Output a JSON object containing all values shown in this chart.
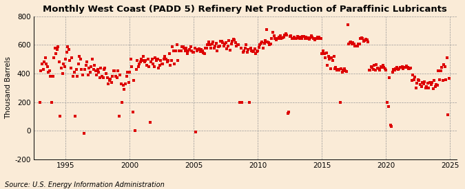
{
  "title": "Monthly West Coast (PADD 5) Refinery Net Production of Paraffinic Lubricants",
  "ylabel": "Thousand Barrels",
  "source": "Source: U.S. Energy Information Administration",
  "background_color": "#faebd7",
  "marker_color": "#dd0000",
  "grid_color": "#999999",
  "title_fontsize": 9.5,
  "ylabel_fontsize": 7.5,
  "source_fontsize": 7,
  "ylim": [
    -200,
    800
  ],
  "xlim_start": 1992.5,
  "xlim_end": 2025.5,
  "yticks": [
    -200,
    0,
    200,
    400,
    600,
    800
  ],
  "xticks": [
    1995,
    2000,
    2005,
    2010,
    2015,
    2020,
    2025
  ],
  "x_values": [
    1993.0,
    1993.08,
    1993.17,
    1993.25,
    1993.33,
    1993.42,
    1993.5,
    1993.58,
    1993.67,
    1993.75,
    1993.83,
    1993.92,
    1994.0,
    1994.08,
    1994.17,
    1994.25,
    1994.33,
    1994.42,
    1994.5,
    1994.58,
    1994.67,
    1994.75,
    1994.83,
    1994.92,
    1995.0,
    1995.08,
    1995.17,
    1995.25,
    1995.33,
    1995.42,
    1995.5,
    1995.58,
    1995.67,
    1995.75,
    1995.83,
    1995.92,
    1996.0,
    1996.08,
    1996.17,
    1996.25,
    1996.33,
    1996.42,
    1996.5,
    1996.58,
    1996.67,
    1996.75,
    1996.83,
    1996.92,
    1997.0,
    1997.08,
    1997.17,
    1997.25,
    1997.33,
    1997.42,
    1997.5,
    1997.58,
    1997.67,
    1997.75,
    1997.83,
    1997.92,
    1998.0,
    1998.08,
    1998.17,
    1998.25,
    1998.33,
    1998.42,
    1998.5,
    1998.58,
    1998.67,
    1998.75,
    1998.83,
    1998.92,
    1999.0,
    1999.08,
    1999.17,
    1999.25,
    1999.33,
    1999.42,
    1999.5,
    1999.58,
    1999.67,
    1999.75,
    1999.83,
    1999.92,
    2000.0,
    2000.08,
    2000.17,
    2000.25,
    2000.33,
    2000.42,
    2000.5,
    2000.58,
    2000.67,
    2000.75,
    2000.83,
    2000.92,
    2001.0,
    2001.08,
    2001.17,
    2001.25,
    2001.33,
    2001.42,
    2001.5,
    2001.58,
    2001.67,
    2001.75,
    2001.83,
    2001.92,
    2002.0,
    2002.08,
    2002.17,
    2002.25,
    2002.33,
    2002.42,
    2002.5,
    2002.58,
    2002.67,
    2002.75,
    2002.83,
    2002.92,
    2003.0,
    2003.08,
    2003.17,
    2003.25,
    2003.33,
    2003.42,
    2003.5,
    2003.58,
    2003.67,
    2003.75,
    2003.83,
    2003.92,
    2004.0,
    2004.08,
    2004.17,
    2004.25,
    2004.33,
    2004.42,
    2004.5,
    2004.58,
    2004.67,
    2004.75,
    2004.83,
    2004.92,
    2005.0,
    2005.08,
    2005.17,
    2005.25,
    2005.33,
    2005.42,
    2005.5,
    2005.58,
    2005.67,
    2005.75,
    2005.83,
    2005.92,
    2006.0,
    2006.08,
    2006.17,
    2006.25,
    2006.33,
    2006.42,
    2006.5,
    2006.58,
    2006.67,
    2006.75,
    2006.83,
    2006.92,
    2007.0,
    2007.08,
    2007.17,
    2007.25,
    2007.33,
    2007.42,
    2007.5,
    2007.58,
    2007.67,
    2007.75,
    2007.83,
    2007.92,
    2008.0,
    2008.08,
    2008.17,
    2008.25,
    2008.33,
    2008.42,
    2008.5,
    2008.58,
    2008.67,
    2008.75,
    2008.83,
    2008.92,
    2009.0,
    2009.08,
    2009.17,
    2009.25,
    2009.33,
    2009.42,
    2009.5,
    2009.58,
    2009.67,
    2009.75,
    2009.83,
    2009.92,
    2010.0,
    2010.08,
    2010.17,
    2010.25,
    2010.33,
    2010.42,
    2010.5,
    2010.58,
    2010.67,
    2010.75,
    2010.83,
    2010.92,
    2011.0,
    2011.08,
    2011.17,
    2011.25,
    2011.33,
    2011.42,
    2011.5,
    2011.58,
    2011.67,
    2011.75,
    2011.83,
    2011.92,
    2012.0,
    2012.08,
    2012.17,
    2012.25,
    2012.33,
    2012.42,
    2012.5,
    2012.58,
    2012.67,
    2012.75,
    2012.83,
    2012.92,
    2013.0,
    2013.08,
    2013.17,
    2013.25,
    2013.33,
    2013.42,
    2013.5,
    2013.58,
    2013.67,
    2013.75,
    2013.83,
    2013.92,
    2014.0,
    2014.08,
    2014.17,
    2014.25,
    2014.33,
    2014.42,
    2014.5,
    2014.58,
    2014.67,
    2014.75,
    2014.83,
    2014.92,
    2015.0,
    2015.08,
    2015.17,
    2015.25,
    2015.33,
    2015.42,
    2015.5,
    2015.58,
    2015.67,
    2015.75,
    2015.83,
    2015.92,
    2016.0,
    2016.08,
    2016.17,
    2016.25,
    2016.33,
    2016.42,
    2016.5,
    2016.58,
    2016.67,
    2016.75,
    2016.83,
    2016.92,
    2017.0,
    2017.08,
    2017.17,
    2017.25,
    2017.33,
    2017.42,
    2017.5,
    2017.58,
    2017.67,
    2017.75,
    2017.83,
    2017.92,
    2018.0,
    2018.08,
    2018.17,
    2018.25,
    2018.33,
    2018.42,
    2018.5,
    2018.58,
    2018.67,
    2018.75,
    2018.83,
    2018.92,
    2019.0,
    2019.08,
    2019.17,
    2019.25,
    2019.33,
    2019.42,
    2019.5,
    2019.58,
    2019.67,
    2019.75,
    2019.83,
    2019.92,
    2020.0,
    2020.08,
    2020.17,
    2020.25,
    2020.33,
    2020.42,
    2020.5,
    2020.58,
    2020.67,
    2020.75,
    2020.83,
    2020.92,
    2021.0,
    2021.08,
    2021.17,
    2021.25,
    2021.33,
    2021.42,
    2021.5,
    2021.58,
    2021.67,
    2021.75,
    2021.83,
    2021.92,
    2022.0,
    2022.08,
    2022.17,
    2022.25,
    2022.33,
    2022.42,
    2022.5,
    2022.58,
    2022.67,
    2022.75,
    2022.83,
    2022.92,
    2023.0,
    2023.08,
    2023.17,
    2023.25,
    2023.33,
    2023.42,
    2023.5,
    2023.58,
    2023.67,
    2023.75,
    2023.83,
    2023.92,
    2024.0,
    2024.08,
    2024.17,
    2024.25,
    2024.33,
    2024.42,
    2024.5,
    2024.58,
    2024.67,
    2024.75,
    2024.83,
    2024.92
  ],
  "y_values": [
    200,
    420,
    470,
    430,
    480,
    510,
    470,
    450,
    410,
    420,
    380,
    200,
    380,
    510,
    580,
    540,
    570,
    590,
    480,
    100,
    440,
    400,
    470,
    450,
    500,
    550,
    590,
    570,
    490,
    440,
    510,
    380,
    410,
    100,
    430,
    380,
    470,
    520,
    500,
    430,
    390,
    -20,
    430,
    460,
    480,
    390,
    440,
    410,
    450,
    500,
    430,
    460,
    420,
    390,
    430,
    410,
    370,
    440,
    380,
    370,
    430,
    440,
    400,
    370,
    330,
    350,
    360,
    340,
    380,
    420,
    420,
    380,
    370,
    420,
    100,
    390,
    330,
    200,
    320,
    290,
    330,
    380,
    410,
    340,
    410,
    500,
    450,
    130,
    350,
    0,
    430,
    490,
    450,
    470,
    480,
    500,
    490,
    520,
    480,
    490,
    460,
    500,
    450,
    60,
    480,
    500,
    470,
    450,
    510,
    490,
    500,
    440,
    460,
    490,
    470,
    470,
    500,
    520,
    500,
    480,
    490,
    540,
    460,
    490,
    590,
    560,
    470,
    560,
    600,
    490,
    560,
    560,
    560,
    590,
    590,
    580,
    560,
    580,
    540,
    560,
    570,
    590,
    560,
    550,
    550,
    580,
    -10,
    560,
    570,
    575,
    555,
    570,
    560,
    545,
    540,
    580,
    580,
    600,
    620,
    600,
    580,
    605,
    620,
    580,
    595,
    610,
    560,
    590,
    595,
    625,
    625,
    615,
    595,
    605,
    615,
    575,
    595,
    630,
    565,
    605,
    625,
    640,
    635,
    615,
    595,
    600,
    600,
    200,
    580,
    200,
    550,
    560,
    580,
    600,
    550,
    570,
    200,
    580,
    560,
    555,
    560,
    575,
    540,
    555,
    560,
    585,
    600,
    610,
    620,
    580,
    610,
    630,
    710,
    620,
    615,
    600,
    605,
    645,
    690,
    665,
    645,
    635,
    645,
    645,
    655,
    665,
    645,
    650,
    655,
    670,
    680,
    670,
    120,
    130,
    660,
    665,
    645,
    645,
    655,
    645,
    645,
    660,
    650,
    645,
    655,
    645,
    660,
    660,
    645,
    655,
    650,
    645,
    640,
    650,
    665,
    655,
    645,
    635,
    645,
    645,
    655,
    655,
    645,
    645,
    540,
    560,
    540,
    510,
    545,
    460,
    520,
    500,
    435,
    510,
    490,
    520,
    435,
    445,
    425,
    430,
    425,
    200,
    435,
    410,
    425,
    435,
    420,
    415,
    740,
    605,
    615,
    620,
    605,
    615,
    605,
    595,
    595,
    595,
    605,
    605,
    645,
    650,
    645,
    625,
    630,
    640,
    635,
    620,
    425,
    425,
    450,
    445,
    430,
    460,
    425,
    465,
    440,
    435,
    425,
    450,
    445,
    460,
    445,
    435,
    425,
    200,
    170,
    370,
    40,
    30,
    410,
    430,
    425,
    435,
    445,
    430,
    435,
    445,
    445,
    450,
    435,
    445,
    445,
    455,
    445,
    435,
    435,
    440,
    350,
    390,
    355,
    375,
    300,
    335,
    355,
    350,
    325,
    310,
    340,
    330,
    345,
    300,
    310,
    335,
    300,
    340,
    325,
    340,
    295,
    350,
    310,
    325,
    320,
    420,
    355,
    420,
    445,
    350,
    465,
    450,
    355,
    510,
    110,
    365
  ]
}
